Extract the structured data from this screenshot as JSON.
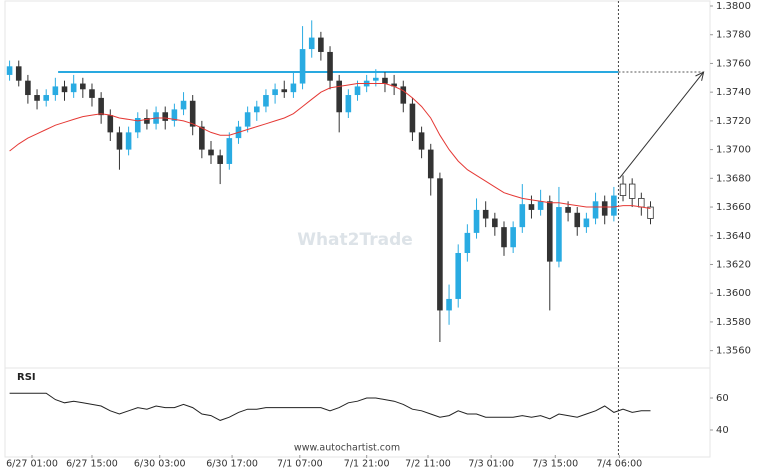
{
  "chart_data": {
    "type": "candlestick",
    "watermark": "What2Trade",
    "source": "www.autochartist.com",
    "xlim": [
      -0.5,
      76.5
    ],
    "xticks": [
      {
        "value": 2.45,
        "label": "6/27 01:00"
      },
      {
        "value": 9.0,
        "label": "6/27 15:00"
      },
      {
        "value": 16.4,
        "label": "6/30 03:00"
      },
      {
        "value": 24.3,
        "label": "6/30 17:00"
      },
      {
        "value": 31.7,
        "label": "7/1 07:00"
      },
      {
        "value": 39.0,
        "label": "7/1 21:00"
      },
      {
        "value": 45.7,
        "label": "7/2 11:00"
      },
      {
        "value": 52.6,
        "label": "7/3 01:00"
      },
      {
        "value": 59.6,
        "label": "7/3 15:00"
      },
      {
        "value": 66.6,
        "label": "7/4 06:00"
      }
    ],
    "ylim": [
      1.355,
      1.38
    ],
    "yticks": [
      {
        "value": 1.356,
        "label": "1.3560"
      },
      {
        "value": 1.358,
        "label": "1.3580"
      },
      {
        "value": 1.36,
        "label": "1.3600"
      },
      {
        "value": 1.362,
        "label": "1.3620"
      },
      {
        "value": 1.364,
        "label": "1.3640"
      },
      {
        "value": 1.366,
        "label": "1.3660"
      },
      {
        "value": 1.368,
        "label": "1.3680"
      },
      {
        "value": 1.37,
        "label": "1.3700"
      },
      {
        "value": 1.372,
        "label": "1.3720"
      },
      {
        "value": 1.374,
        "label": "1.3740"
      },
      {
        "value": 1.376,
        "label": "1.3760"
      },
      {
        "value": 1.378,
        "label": "1.3780"
      },
      {
        "value": 1.38,
        "label": "1.3800"
      }
    ],
    "up_color": "#29abe2",
    "down_color": "#333333",
    "open": [
      1.3752,
      1.3758,
      1.3748,
      1.3738,
      1.3734,
      1.3738,
      1.3744,
      1.374,
      1.3746,
      1.3742,
      1.3736,
      1.3724,
      1.3712,
      1.37,
      1.3712,
      1.3722,
      1.3718,
      1.3726,
      1.372,
      1.3728,
      1.3734,
      1.3716,
      1.37,
      1.3696,
      1.369,
      1.3708,
      1.3716,
      1.3726,
      1.373,
      1.3738,
      1.3742,
      1.374,
      1.3746,
      1.377,
      1.3778,
      1.3768,
      1.3748,
      1.3726,
      1.3738,
      1.3744,
      1.3748,
      1.375,
      1.3746,
      1.3744,
      1.3732,
      1.3712,
      1.37,
      1.368,
      1.3588,
      1.3596,
      1.3628,
      1.3642,
      1.3658,
      1.3652,
      1.3646,
      1.3632,
      1.3646,
      1.3662,
      1.3658,
      1.3664,
      1.3622,
      1.366,
      1.3656,
      1.3646,
      1.3652,
      1.3664,
      1.3654,
      1.3668,
      1.3676,
      1.3666,
      1.366
    ],
    "high": [
      1.3762,
      1.3762,
      1.3752,
      1.3742,
      1.3742,
      1.375,
      1.3748,
      1.3752,
      1.375,
      1.3746,
      1.374,
      1.3728,
      1.3716,
      1.3716,
      1.3726,
      1.3728,
      1.373,
      1.373,
      1.3732,
      1.374,
      1.3738,
      1.372,
      1.3706,
      1.37,
      1.3712,
      1.372,
      1.373,
      1.3734,
      1.3742,
      1.3746,
      1.3748,
      1.3754,
      1.3786,
      1.379,
      1.3782,
      1.3772,
      1.3752,
      1.3742,
      1.3748,
      1.3752,
      1.3756,
      1.3754,
      1.3752,
      1.3748,
      1.3736,
      1.3716,
      1.3704,
      1.3684,
      1.3606,
      1.3634,
      1.3648,
      1.3666,
      1.3664,
      1.3656,
      1.365,
      1.365,
      1.3676,
      1.3668,
      1.3672,
      1.3668,
      1.3674,
      1.3664,
      1.366,
      1.3656,
      1.367,
      1.3668,
      1.3674,
      1.3682,
      1.368,
      1.367,
      1.3664
    ],
    "low": [
      1.3748,
      1.3744,
      1.3732,
      1.3728,
      1.373,
      1.3734,
      1.3734,
      1.3736,
      1.3736,
      1.373,
      1.3718,
      1.3706,
      1.3686,
      1.3696,
      1.3708,
      1.3714,
      1.3714,
      1.3714,
      1.3716,
      1.3724,
      1.371,
      1.3694,
      1.369,
      1.3676,
      1.3686,
      1.3704,
      1.3712,
      1.372,
      1.3726,
      1.3732,
      1.3736,
      1.3736,
      1.3742,
      1.3764,
      1.3762,
      1.3742,
      1.3712,
      1.3722,
      1.3734,
      1.374,
      1.3744,
      1.374,
      1.3738,
      1.3726,
      1.3706,
      1.3694,
      1.3668,
      1.3566,
      1.3578,
      1.359,
      1.3622,
      1.3638,
      1.3646,
      1.364,
      1.3626,
      1.3628,
      1.3642,
      1.3652,
      1.3654,
      1.3588,
      1.3618,
      1.365,
      1.364,
      1.3642,
      1.3648,
      1.3648,
      1.365,
      1.3664,
      1.366,
      1.3654,
      1.3648
    ],
    "close": [
      1.3758,
      1.3748,
      1.3738,
      1.3734,
      1.3738,
      1.3744,
      1.374,
      1.3746,
      1.3742,
      1.3736,
      1.3724,
      1.3712,
      1.37,
      1.3712,
      1.3722,
      1.3718,
      1.3726,
      1.372,
      1.3728,
      1.3734,
      1.3716,
      1.37,
      1.3696,
      1.369,
      1.3708,
      1.3716,
      1.3726,
      1.373,
      1.3738,
      1.3742,
      1.374,
      1.3746,
      1.377,
      1.3778,
      1.3768,
      1.3748,
      1.3726,
      1.3738,
      1.3744,
      1.3748,
      1.375,
      1.3746,
      1.3744,
      1.3732,
      1.3712,
      1.37,
      1.368,
      1.3588,
      1.3596,
      1.3628,
      1.3642,
      1.3658,
      1.3652,
      1.3646,
      1.3632,
      1.3646,
      1.3662,
      1.3658,
      1.3664,
      1.3622,
      1.366,
      1.3656,
      1.3646,
      1.3652,
      1.3664,
      1.3654,
      1.3668,
      1.3676,
      1.3666,
      1.366,
      1.3652
    ],
    "moving_average": {
      "color": "#e53935",
      "values": [
        1.3699,
        1.3704,
        1.3708,
        1.3711,
        1.3714,
        1.3717,
        1.3719,
        1.3721,
        1.3723,
        1.3724,
        1.3725,
        1.3724,
        1.3722,
        1.3721,
        1.372,
        1.3721,
        1.3722,
        1.3722,
        1.3721,
        1.372,
        1.3718,
        1.3715,
        1.3712,
        1.371,
        1.371,
        1.3712,
        1.3714,
        1.3716,
        1.3718,
        1.372,
        1.3722,
        1.3725,
        1.373,
        1.3735,
        1.374,
        1.3743,
        1.3744,
        1.3745,
        1.3746,
        1.3746,
        1.3746,
        1.3746,
        1.3744,
        1.3741,
        1.3736,
        1.373,
        1.3722,
        1.371,
        1.37,
        1.3692,
        1.3686,
        1.3682,
        1.3678,
        1.3674,
        1.367,
        1.3668,
        1.3666,
        1.3665,
        1.3664,
        1.3663,
        1.3663,
        1.3662,
        1.3661,
        1.366,
        1.366,
        1.366,
        1.366,
        1.3661,
        1.3661,
        1.366,
        1.3659
      ]
    },
    "resistance": {
      "value": 1.3754,
      "from": 5.3,
      "to": 66.5,
      "color": "#29a9e0"
    },
    "current_time": 66.5,
    "forecast": {
      "from": {
        "x": 66.6,
        "y": 1.368
      },
      "to": {
        "x": 75.8,
        "y": 1.3754
      }
    },
    "rsi": {
      "label": "RSI",
      "ylim": [
        30,
        68
      ],
      "yticks": [
        40,
        60
      ],
      "color": "#222222",
      "values": [
        63,
        63,
        63,
        63,
        63,
        59,
        57,
        58,
        57,
        56,
        55,
        52,
        50,
        52,
        54,
        53,
        55,
        54,
        54,
        56,
        54,
        50,
        49,
        46,
        48,
        51,
        53,
        53,
        54,
        54,
        54,
        54,
        54,
        54,
        54,
        52,
        54,
        57,
        58,
        60,
        60,
        59,
        58,
        56,
        53,
        52,
        50,
        48,
        49,
        52,
        50,
        50,
        48,
        48,
        48,
        48,
        49,
        48,
        49,
        47,
        50,
        49,
        48,
        50,
        52,
        55,
        51,
        53,
        51,
        52,
        52
      ]
    }
  }
}
